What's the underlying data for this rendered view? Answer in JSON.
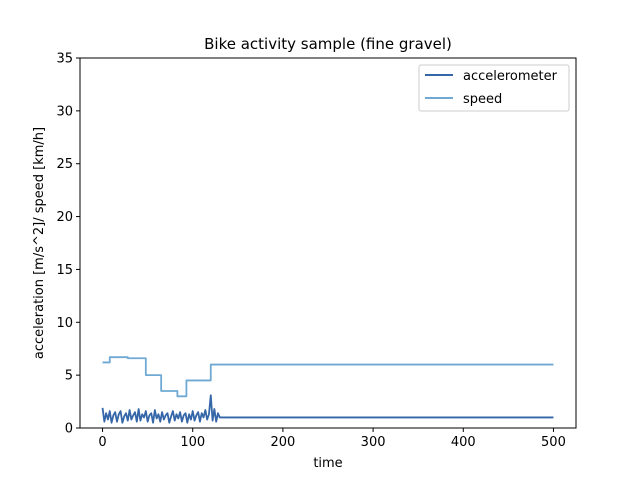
{
  "chart_data": {
    "type": "line",
    "title": "Bike activity sample (fine gravel)",
    "xlabel": "time",
    "ylabel": "acceleration [m/s^2]/ speed [km/h]",
    "xlim": [
      -25,
      525
    ],
    "ylim": [
      0,
      35
    ],
    "xticks": [
      0,
      100,
      200,
      300,
      400,
      500
    ],
    "yticks": [
      0,
      5,
      10,
      15,
      20,
      25,
      30,
      35
    ],
    "grid": false,
    "legend_position": "top-right",
    "series": [
      {
        "name": "accelerometer",
        "color": "#3466a8",
        "x": [
          0,
          2,
          4,
          6,
          8,
          10,
          12,
          14,
          16,
          18,
          20,
          22,
          24,
          26,
          28,
          30,
          32,
          34,
          36,
          38,
          40,
          42,
          44,
          46,
          48,
          50,
          52,
          54,
          56,
          58,
          60,
          62,
          64,
          66,
          68,
          70,
          72,
          74,
          76,
          78,
          80,
          82,
          84,
          86,
          88,
          90,
          92,
          94,
          96,
          98,
          100,
          102,
          104,
          106,
          108,
          110,
          112,
          114,
          116,
          118,
          120,
          122,
          124,
          126,
          128,
          130,
          500
        ],
        "y": [
          1.9,
          0.6,
          1.4,
          0.8,
          1.6,
          0.5,
          1.2,
          1.5,
          0.6,
          1.3,
          1.6,
          0.5,
          1.1,
          1.4,
          0.7,
          1.7,
          0.8,
          1.2,
          1.5,
          0.6,
          1.8,
          0.7,
          1.3,
          1.0,
          1.6,
          0.6,
          1.2,
          1.4,
          0.5,
          1.7,
          0.9,
          1.3,
          0.6,
          1.5,
          0.8,
          1.2,
          1.4,
          0.5,
          1.1,
          1.6,
          0.7,
          1.3,
          0.9,
          1.5,
          0.6,
          1.2,
          1.4,
          0.5,
          1.3,
          0.8,
          1.6,
          0.7,
          1.2,
          1.5,
          0.6,
          1.4,
          1.0,
          1.7,
          0.8,
          1.3,
          3.1,
          0.7,
          1.8,
          0.6,
          1.4,
          1.0,
          1.0
        ]
      },
      {
        "name": "speed",
        "color": "#6fa9d4",
        "x": [
          0,
          8,
          8,
          28,
          28,
          48,
          48,
          65,
          65,
          83,
          83,
          93,
          93,
          118,
          118,
          120,
          120,
          500
        ],
        "y": [
          6.2,
          6.2,
          6.7,
          6.7,
          6.6,
          6.6,
          5.0,
          5.0,
          3.5,
          3.5,
          3.0,
          3.0,
          4.5,
          4.5,
          4.5,
          4.5,
          6.0,
          6.0
        ]
      }
    ]
  }
}
